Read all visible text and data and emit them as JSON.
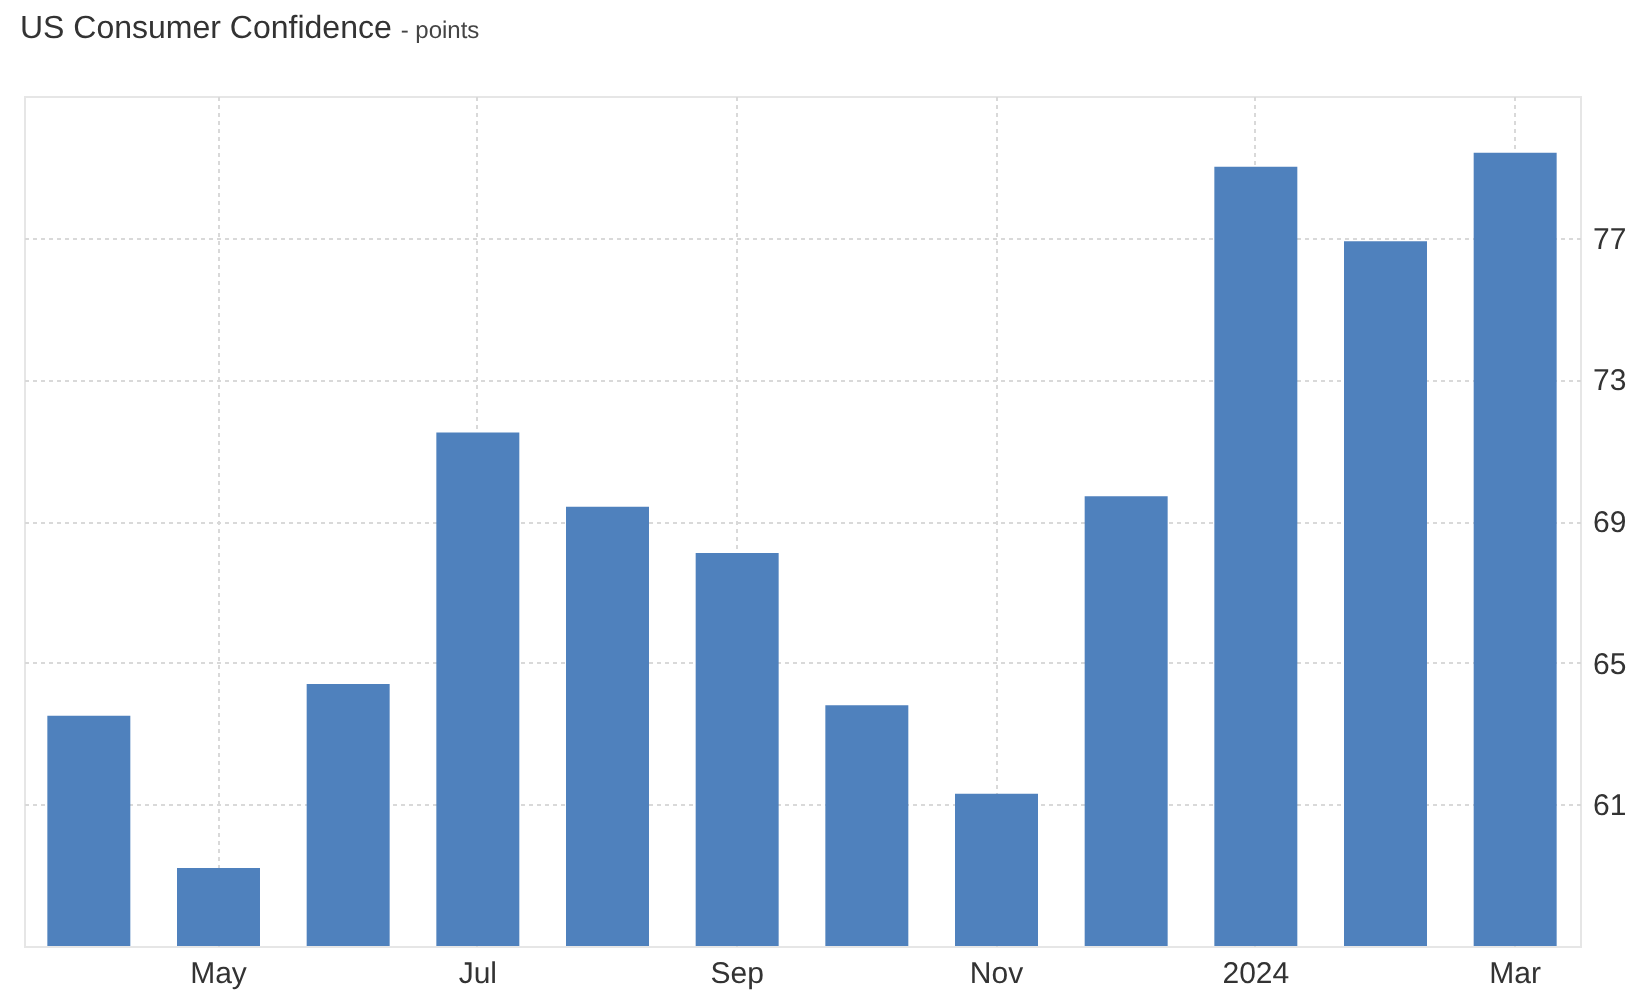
{
  "chart_data": {
    "type": "bar",
    "title": "US Consumer Confidence",
    "subtitle": "- points",
    "categories": [
      null,
      "May",
      null,
      "Jul",
      null,
      "Sep",
      null,
      "Nov",
      null,
      "2024",
      null,
      "Mar"
    ],
    "values": [
      63.5,
      59.2,
      64.4,
      71.5,
      69.4,
      68.1,
      63.8,
      61.3,
      69.7,
      79.0,
      76.9,
      79.4
    ],
    "color": "#4f81bd",
    "ylim": [
      57,
      81
    ],
    "yticks": [
      61,
      65,
      69,
      73,
      77
    ],
    "grid": true
  }
}
